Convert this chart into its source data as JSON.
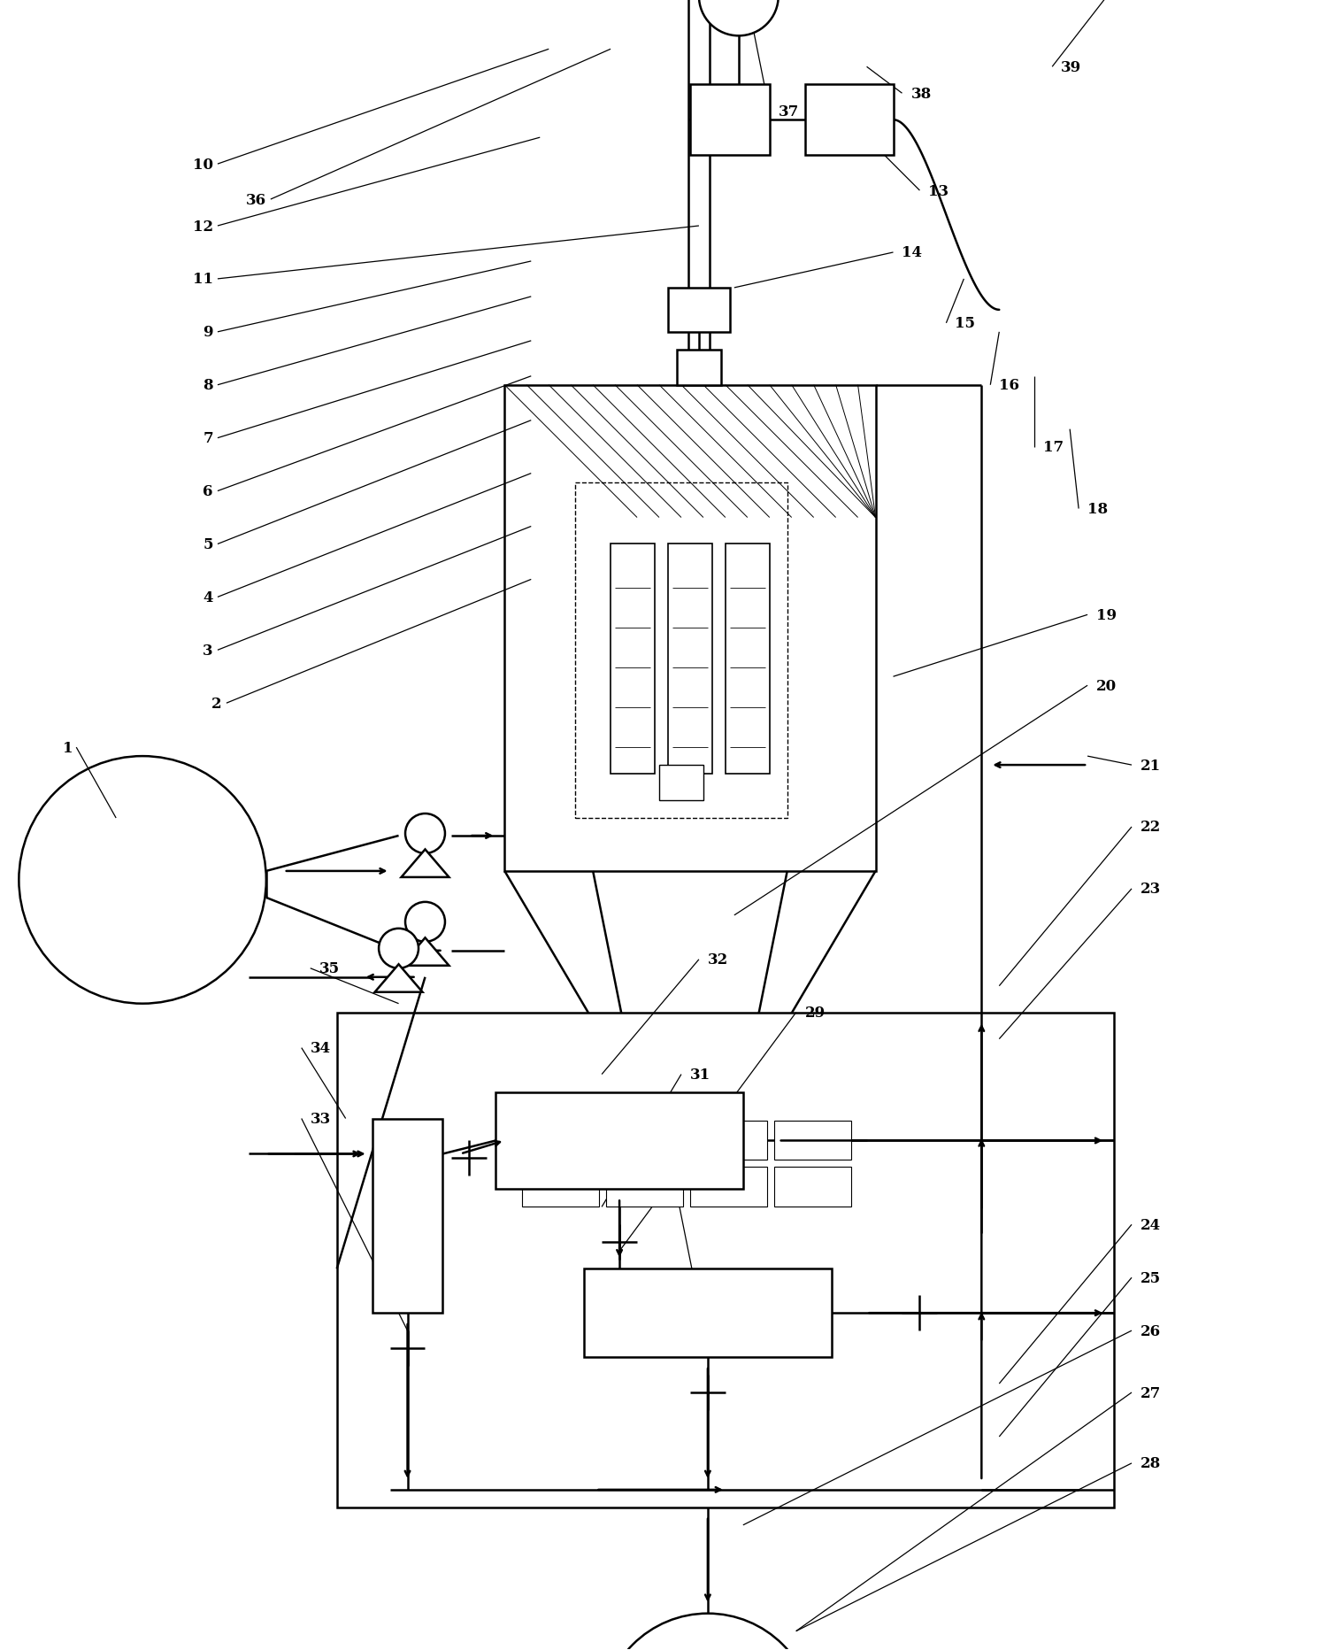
{
  "bg_color": "#ffffff",
  "lc": "#000000",
  "lw": 1.8,
  "lw_thin": 0.9,
  "fs": 12,
  "figsize": [
    14.93,
    18.65
  ],
  "dpi": 100,
  "xlim": [
    0,
    149.3
  ],
  "ylim": [
    0,
    186.5
  ]
}
